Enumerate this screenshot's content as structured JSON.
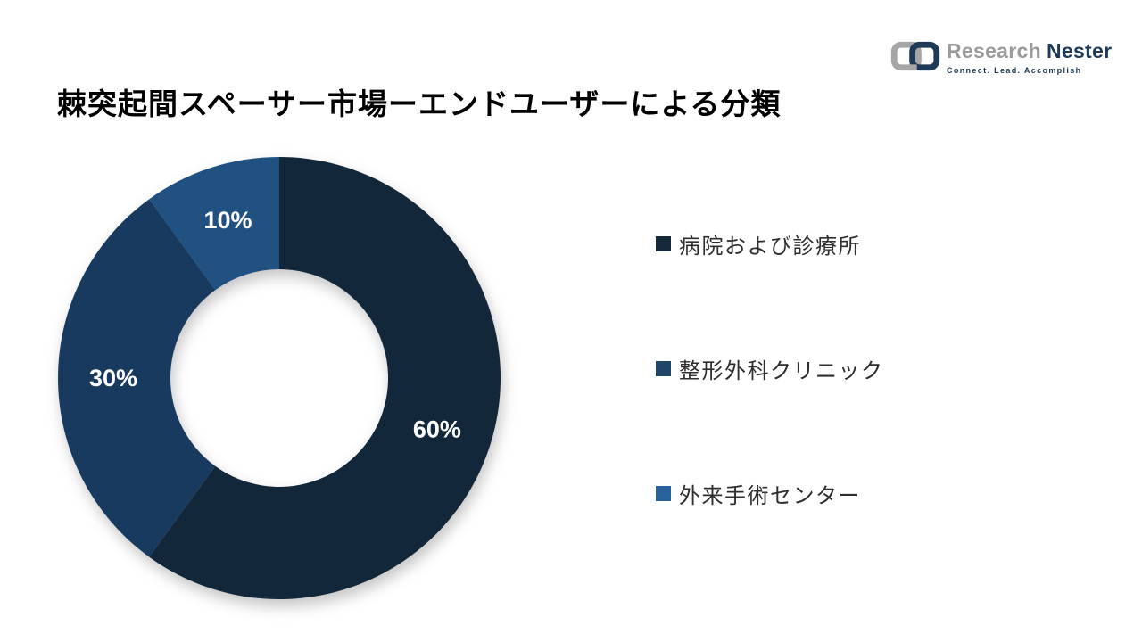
{
  "logo": {
    "brand_primary": "Research",
    "brand_secondary": "Nester",
    "tagline": "Connect. Lead. Accomplish",
    "icon": "interlocked-chain-links",
    "colors": {
      "gray": "#9b9b9b",
      "navy": "#1e3a56"
    }
  },
  "title": "棘突起間スペーサー市場ーエンドユーザーによる分類",
  "chart_data": {
    "type": "pie",
    "subtype": "donut",
    "title": "棘突起間スペーサー市場ーエンドユーザーによる分類",
    "categories": [
      "病院および診療所",
      "整形外科クリニック",
      "外来手術センター"
    ],
    "values": [
      60,
      30,
      10
    ],
    "labels": [
      "60%",
      "30%",
      "10%"
    ],
    "colors": [
      "#12273A",
      "#183A5F",
      "#215181"
    ],
    "legend_colors": [
      "#16293B",
      "#1F4569",
      "#27629B"
    ],
    "label_color": "#FFFFFF",
    "start_angle_deg": 0,
    "direction": "clockwise",
    "inner_radius_ratio": 0.49,
    "label_radius_ratio": 0.75,
    "legend_position": "right",
    "background": "#FFFFFF"
  }
}
